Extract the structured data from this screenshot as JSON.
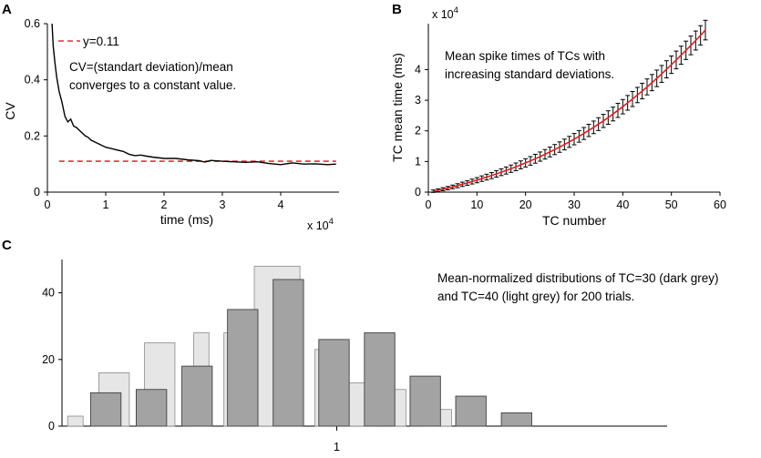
{
  "colors": {
    "line": "#000000",
    "dashed": "#e0303a",
    "fit": "#e02020",
    "dark_bar": "#a3a3a3",
    "light_bar": "#e6e6e6",
    "bar_edge": "#404040"
  },
  "chart_data": [
    {
      "panel": "A",
      "type": "line",
      "xlim": [
        0,
        50000
      ],
      "ylim": [
        0,
        0.6
      ],
      "x_ticks": [
        0,
        10000,
        20000,
        30000,
        40000
      ],
      "x_tick_labels": [
        "0",
        "1",
        "2",
        "3",
        "4"
      ],
      "y_ticks": [
        0,
        0.2,
        0.4,
        0.6
      ],
      "y_tick_labels": [
        "0",
        "0.2",
        "0.4",
        "0.6"
      ],
      "xlabel": "time (ms)",
      "x_exponent": "x 10",
      "x_exponent_power": "4",
      "ylabel": "CV",
      "legend": "y=0.11",
      "annotation": [
        "CV=(standart deviation)/mean",
        "converges to a constant value."
      ],
      "series": [
        {
          "name": "CV",
          "x": [
            800,
            1000,
            1300,
            1600,
            2000,
            2500,
            3000,
            3500,
            4000,
            4500,
            5000,
            5500,
            6000,
            6500,
            7000,
            7500,
            8000,
            9000,
            10000,
            11000,
            12000,
            13000,
            14000,
            15000,
            16000,
            17000,
            18000,
            20000,
            22000,
            24000,
            26000,
            27000,
            28000,
            30000,
            32000,
            34000,
            36000,
            38000,
            40000,
            42000,
            44000,
            46000,
            48000,
            49500
          ],
          "y": [
            0.6,
            0.52,
            0.46,
            0.41,
            0.36,
            0.32,
            0.27,
            0.25,
            0.26,
            0.235,
            0.23,
            0.22,
            0.21,
            0.2,
            0.195,
            0.185,
            0.18,
            0.17,
            0.16,
            0.155,
            0.15,
            0.145,
            0.135,
            0.13,
            0.132,
            0.128,
            0.125,
            0.12,
            0.12,
            0.115,
            0.112,
            0.107,
            0.113,
            0.11,
            0.108,
            0.106,
            0.108,
            0.102,
            0.098,
            0.104,
            0.1,
            0.101,
            0.098,
            0.1
          ]
        },
        {
          "name": "y=0.11",
          "x": [
            2000,
            49500
          ],
          "y": [
            0.11,
            0.11
          ]
        }
      ]
    },
    {
      "panel": "B",
      "type": "line",
      "xlim": [
        0,
        60
      ],
      "ylim": [
        0,
        55000
      ],
      "x_ticks": [
        0,
        10,
        20,
        30,
        40,
        50,
        60
      ],
      "x_tick_labels": [
        "0",
        "10",
        "20",
        "30",
        "40",
        "50",
        "60"
      ],
      "y_ticks": [
        0,
        10000,
        20000,
        30000,
        40000
      ],
      "y_tick_labels": [
        "0",
        "1",
        "2",
        "3",
        "4"
      ],
      "xlabel": "TC number",
      "ylabel": "TC mean time (ms)",
      "y_exponent": "x 10",
      "y_exponent_power": "4",
      "annotation": [
        "Mean spike times of TCs with",
        "increasing standard deviations."
      ],
      "series": [
        {
          "name": "mean spike time",
          "x": [
            1,
            2,
            3,
            4,
            5,
            6,
            7,
            8,
            9,
            10,
            11,
            12,
            13,
            14,
            15,
            16,
            17,
            18,
            19,
            20,
            21,
            22,
            23,
            24,
            25,
            26,
            27,
            28,
            29,
            30,
            31,
            32,
            33,
            34,
            35,
            36,
            37,
            38,
            39,
            40,
            41,
            42,
            43,
            44,
            45,
            46,
            47,
            48,
            49,
            50,
            51,
            52,
            53,
            54,
            55,
            56,
            57
          ],
          "y": [
            300,
            600,
            950,
            1300,
            1700,
            2100,
            2550,
            3000,
            3450,
            3900,
            4400,
            4900,
            5400,
            5950,
            6500,
            7050,
            7650,
            8250,
            8900,
            9550,
            10200,
            10900,
            11600,
            12350,
            13100,
            13900,
            14700,
            15550,
            16400,
            17300,
            18200,
            19150,
            20150,
            21150,
            22200,
            23250,
            24350,
            25500,
            26700,
            27900,
            29150,
            30400,
            31700,
            33000,
            34350,
            35750,
            37150,
            38600,
            40100,
            41600,
            43150,
            44700,
            46300,
            47900,
            49500,
            51200,
            52900
          ],
          "error": [
            400,
            450,
            500,
            550,
            600,
            650,
            700,
            750,
            800,
            850,
            900,
            950,
            1000,
            1050,
            1100,
            1150,
            1200,
            1250,
            1300,
            1350,
            1400,
            1450,
            1500,
            1550,
            1600,
            1650,
            1700,
            1750,
            1800,
            1850,
            1900,
            1950,
            2000,
            2050,
            2100,
            2150,
            2200,
            2250,
            2300,
            2350,
            2400,
            2450,
            2500,
            2550,
            2600,
            2650,
            2700,
            2750,
            2800,
            2850,
            2900,
            2950,
            3000,
            3050,
            3100,
            3150,
            3200
          ]
        }
      ]
    },
    {
      "panel": "C",
      "type": "bar",
      "x_center_label": "1",
      "xlim": [
        0,
        1
      ],
      "ylim": [
        0,
        50
      ],
      "y_ticks": [
        0,
        20,
        40
      ],
      "y_tick_labels": [
        "0",
        "20",
        "40"
      ],
      "annotation": [
        "Mean-normalized distributions of TC=30 (dark grey)",
        "and TC=40 (light grey)  for 200 trials."
      ],
      "series": [
        {
          "name": "TC=40 (light grey)",
          "bins": [
            [
              0.027,
              0.083
            ],
            [
              0.14,
              0.25
            ],
            [
              0.305,
              0.415
            ],
            [
              0.483,
              0.538
            ],
            [
              0.592,
              0.647
            ],
            [
              0.702,
              0.867
            ],
            [
              0.921,
              0.976
            ],
            [
              1.03,
              1.14
            ],
            [
              1.195,
              1.25
            ],
            [
              1.305,
              1.415
            ]
          ],
          "values": [
            3,
            16,
            25,
            28,
            28,
            48,
            23,
            13,
            11,
            5
          ]
        },
        {
          "name": "TC=30 (dark grey)",
          "bins": [
            [
              0.11,
              0.22
            ],
            [
              0.275,
              0.385
            ],
            [
              0.44,
              0.55
            ],
            [
              0.605,
              0.715
            ],
            [
              0.77,
              0.88
            ],
            [
              0.935,
              1.045
            ],
            [
              1.1,
              1.21
            ],
            [
              1.265,
              1.375
            ],
            [
              1.43,
              1.54
            ],
            [
              1.595,
              1.705
            ]
          ],
          "values": [
            10,
            11,
            18,
            35,
            44,
            26,
            28,
            15,
            9,
            4
          ]
        }
      ]
    }
  ]
}
